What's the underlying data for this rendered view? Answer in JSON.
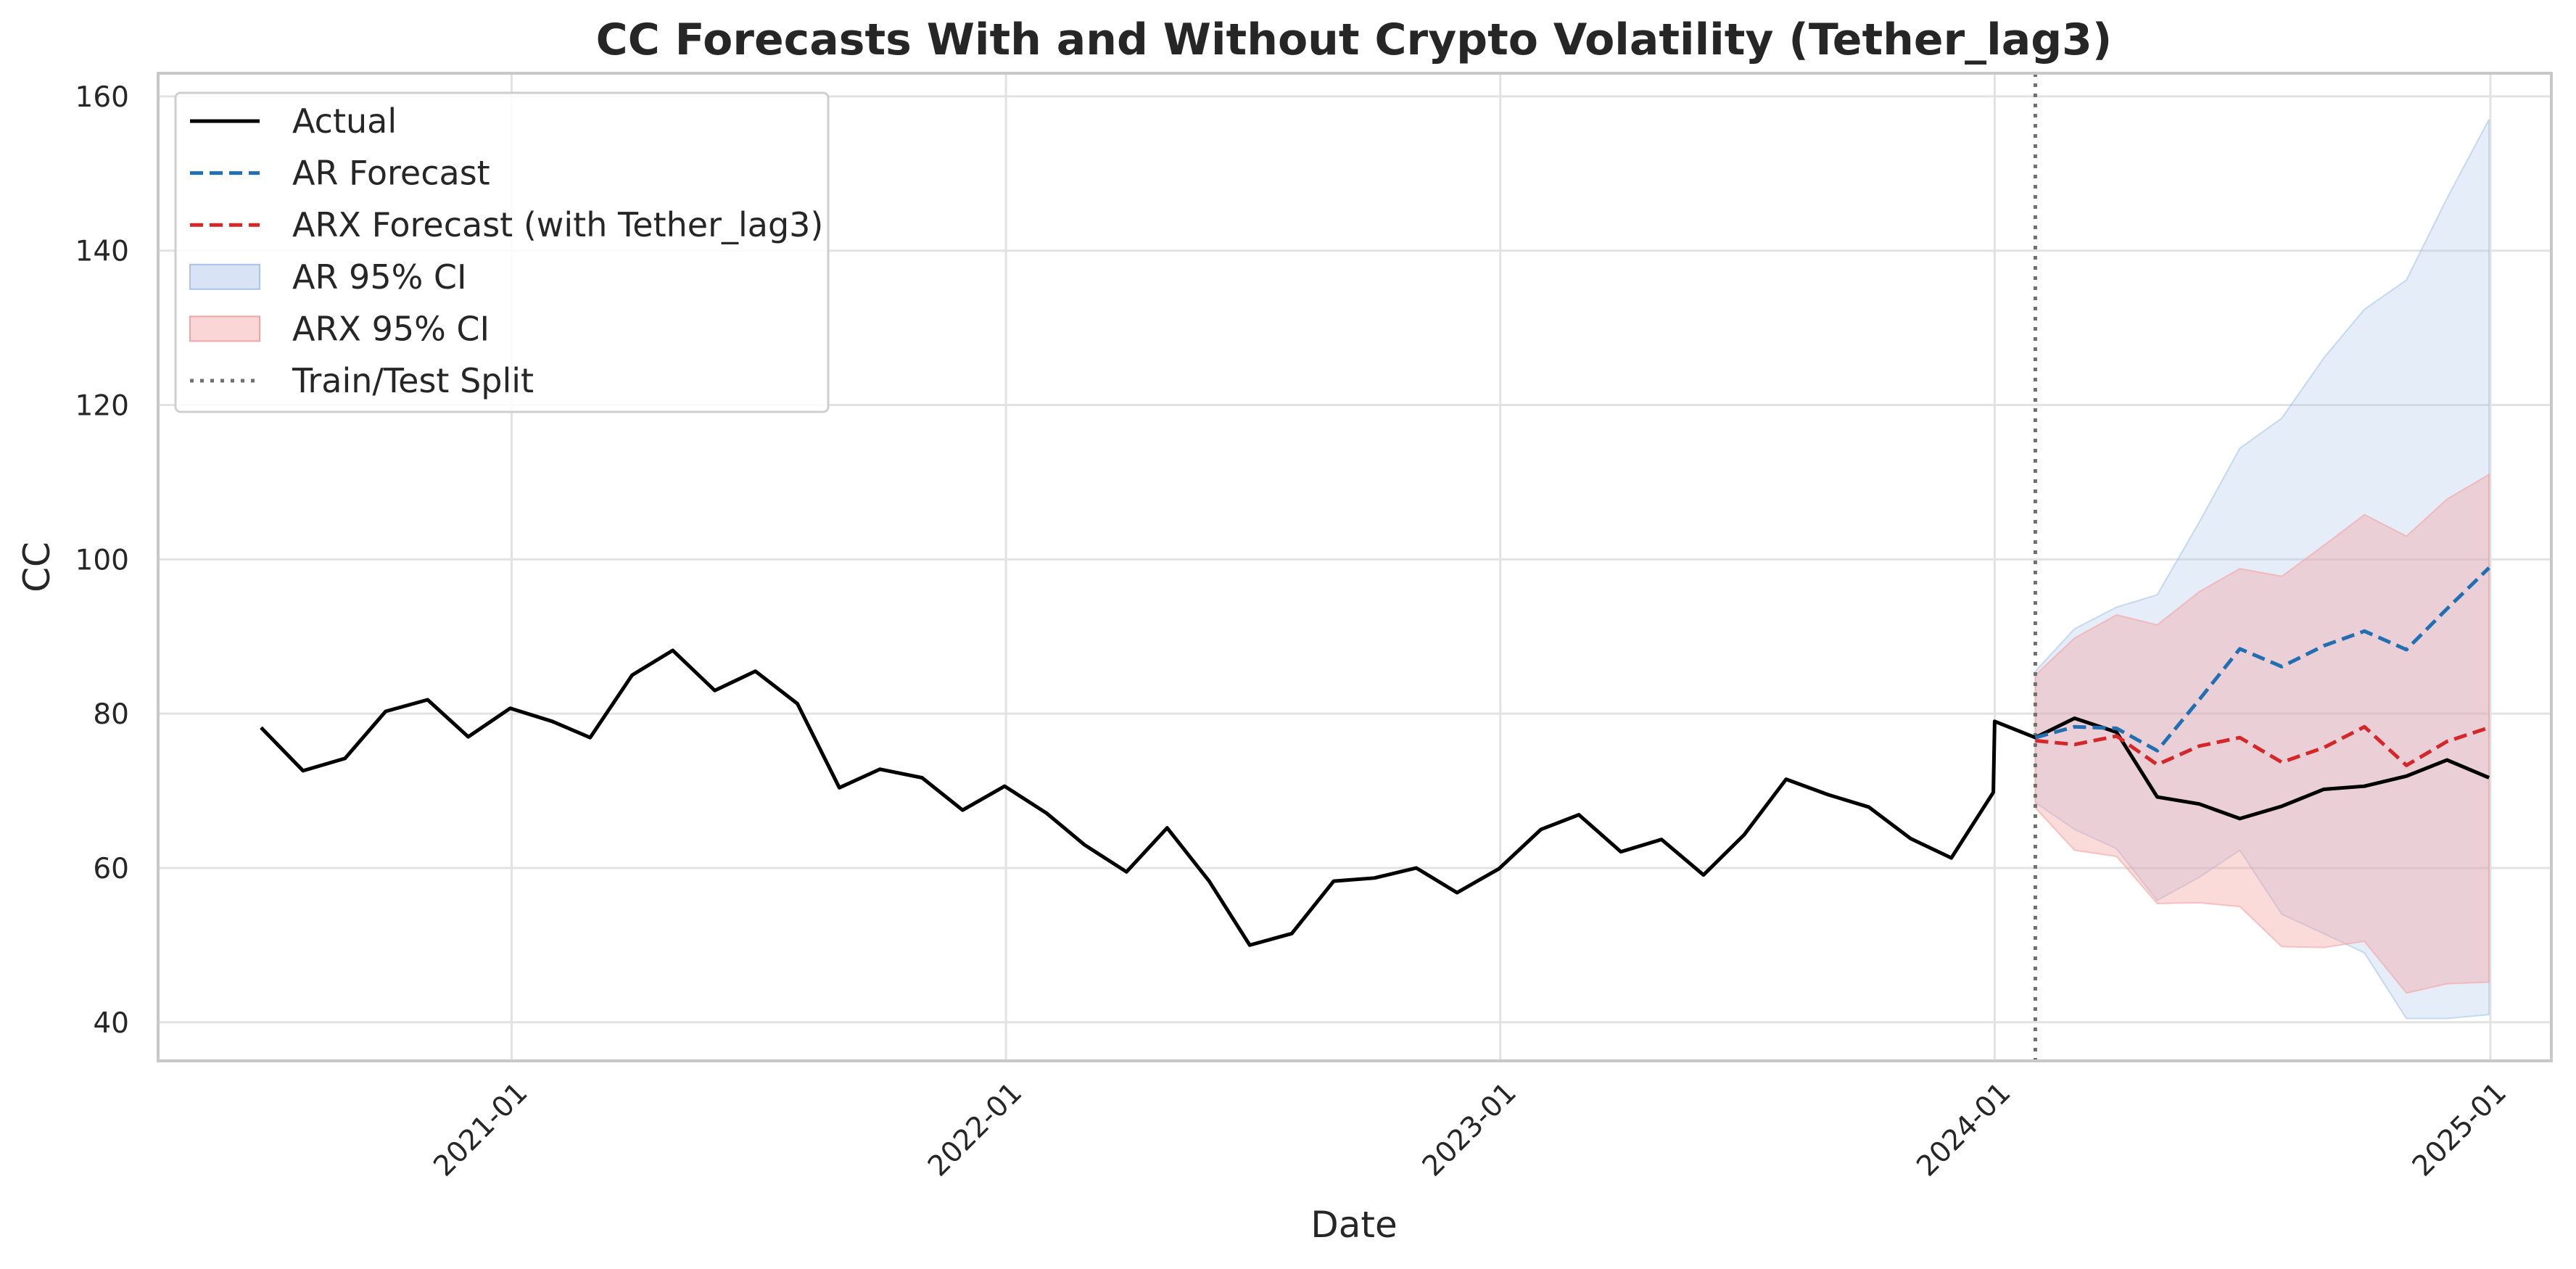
{
  "chart_data": {
    "type": "line",
    "title": "CC Forecasts With and Without Crypto Volatility (Tether_lag3)",
    "xlabel": "Date",
    "ylabel": "CC",
    "x_axis_type": "date",
    "x_range": [
      "2020-04-15",
      "2025-02-15"
    ],
    "ylim": [
      35,
      163
    ],
    "x_ticks": [
      "2021-01",
      "2022-01",
      "2023-01",
      "2024-01",
      "2025-01"
    ],
    "y_ticks": [
      40,
      60,
      80,
      100,
      120,
      140,
      160
    ],
    "grid": true,
    "legend_position": "upper-left",
    "train_test_split": "2024-01-31",
    "series": [
      {
        "name": "Actual",
        "color": "#000000",
        "style": "solid",
        "points": [
          [
            "2020-06-30",
            78.2
          ],
          [
            "2020-07-31",
            72.6
          ],
          [
            "2020-08-31",
            74.2
          ],
          [
            "2020-09-30",
            80.3
          ],
          [
            "2020-10-31",
            81.8
          ],
          [
            "2020-11-30",
            77.0
          ],
          [
            "2020-12-31",
            80.7
          ],
          [
            "2021-01-31",
            79.0
          ],
          [
            "2021-02-28",
            76.9
          ],
          [
            "2021-03-31",
            85.0
          ],
          [
            "2021-04-30",
            88.2
          ],
          [
            "2021-05-31",
            83.0
          ],
          [
            "2021-06-30",
            85.5
          ],
          [
            "2021-07-31",
            81.3
          ],
          [
            "2021-08-31",
            70.4
          ],
          [
            "2021-09-30",
            72.8
          ],
          [
            "2021-10-31",
            71.7
          ],
          [
            "2021-11-30",
            67.5
          ],
          [
            "2021-12-31",
            70.6
          ],
          [
            "2022-01-31",
            67.1
          ],
          [
            "2022-02-28",
            63.0
          ],
          [
            "2022-03-31",
            59.5
          ],
          [
            "2022-04-30",
            65.2
          ],
          [
            "2022-05-31",
            58.3
          ],
          [
            "2022-06-30",
            50.0
          ],
          [
            "2022-07-31",
            51.5
          ],
          [
            "2022-08-31",
            58.3
          ],
          [
            "2022-09-30",
            58.7
          ],
          [
            "2022-10-31",
            60.0
          ],
          [
            "2022-11-30",
            56.8
          ],
          [
            "2022-12-31",
            59.9
          ],
          [
            "2023-01-31",
            65.0
          ],
          [
            "2023-02-28",
            66.9
          ],
          [
            "2023-03-31",
            62.1
          ],
          [
            "2023-04-30",
            63.7
          ],
          [
            "2023-05-31",
            59.1
          ],
          [
            "2023-06-30",
            64.3
          ],
          [
            "2023-07-31",
            71.5
          ],
          [
            "2023-08-31",
            69.5
          ],
          [
            "2023-09-30",
            67.9
          ],
          [
            "2023-10-31",
            63.8
          ],
          [
            "2023-11-30",
            61.3
          ],
          [
            "2023-12-31",
            69.8
          ],
          [
            "2024-01-01",
            79.0
          ],
          [
            "2024-01-31",
            76.9
          ],
          [
            "2024-02-29",
            79.4
          ],
          [
            "2024-03-31",
            77.6
          ],
          [
            "2024-04-30",
            69.2
          ],
          [
            "2024-05-31",
            68.3
          ],
          [
            "2024-06-30",
            66.4
          ],
          [
            "2024-07-31",
            68.0
          ],
          [
            "2024-08-31",
            70.2
          ],
          [
            "2024-09-30",
            70.6
          ],
          [
            "2024-10-31",
            71.9
          ],
          [
            "2024-11-30",
            74.0
          ],
          [
            "2024-12-31",
            71.7
          ]
        ]
      },
      {
        "name": "AR Forecast",
        "color": "#1f6fb2",
        "style": "dashed",
        "points": [
          [
            "2024-01-31",
            76.9
          ],
          [
            "2024-02-29",
            78.3
          ],
          [
            "2024-03-31",
            78.1
          ],
          [
            "2024-04-30",
            75.2
          ],
          [
            "2024-05-31",
            81.8
          ],
          [
            "2024-06-30",
            88.4
          ],
          [
            "2024-07-31",
            86.1
          ],
          [
            "2024-08-31",
            88.8
          ],
          [
            "2024-09-30",
            90.7
          ],
          [
            "2024-10-31",
            88.3
          ],
          [
            "2024-11-30",
            93.6
          ],
          [
            "2024-12-31",
            98.9
          ]
        ]
      },
      {
        "name": "ARX Forecast (with Tether_lag3)",
        "color": "#d62728",
        "style": "dashed",
        "points": [
          [
            "2024-01-31",
            76.5
          ],
          [
            "2024-02-29",
            76.0
          ],
          [
            "2024-03-31",
            77.1
          ],
          [
            "2024-04-30",
            73.4
          ],
          [
            "2024-05-31",
            75.8
          ],
          [
            "2024-06-30",
            76.9
          ],
          [
            "2024-07-31",
            73.7
          ],
          [
            "2024-08-31",
            75.6
          ],
          [
            "2024-09-30",
            78.3
          ],
          [
            "2024-10-31",
            73.3
          ],
          [
            "2024-11-30",
            76.4
          ],
          [
            "2024-12-31",
            78.2
          ]
        ]
      }
    ],
    "bands": [
      {
        "name": "AR 95% CI",
        "color": "#a9c4e8",
        "opacity": 0.3,
        "points": [
          [
            "2024-01-31",
            85.5,
            68.5
          ],
          [
            "2024-02-29",
            91.0,
            65.0
          ],
          [
            "2024-03-31",
            93.8,
            62.5
          ],
          [
            "2024-04-30",
            95.4,
            55.8
          ],
          [
            "2024-05-31",
            104.8,
            58.8
          ],
          [
            "2024-06-30",
            114.4,
            62.3
          ],
          [
            "2024-07-31",
            118.3,
            54.0
          ],
          [
            "2024-08-31",
            126.1,
            51.5
          ],
          [
            "2024-09-30",
            132.4,
            49.0
          ],
          [
            "2024-10-31",
            136.2,
            40.5
          ],
          [
            "2024-11-30",
            146.8,
            40.5
          ],
          [
            "2024-12-31",
            157.0,
            41.0
          ]
        ]
      },
      {
        "name": "ARX 95% CI",
        "color": "#f4a3a3",
        "opacity": 0.4,
        "points": [
          [
            "2024-01-31",
            85.0,
            67.8
          ],
          [
            "2024-02-29",
            89.8,
            62.3
          ],
          [
            "2024-03-31",
            92.8,
            61.5
          ],
          [
            "2024-04-30",
            91.5,
            55.4
          ],
          [
            "2024-05-31",
            95.8,
            55.5
          ],
          [
            "2024-06-30",
            98.8,
            55.0
          ],
          [
            "2024-07-31",
            97.8,
            49.8
          ],
          [
            "2024-08-31",
            101.8,
            49.7
          ],
          [
            "2024-09-30",
            105.8,
            50.5
          ],
          [
            "2024-10-31",
            103.0,
            43.8
          ],
          [
            "2024-11-30",
            107.8,
            45.0
          ],
          [
            "2024-12-31",
            111.0,
            45.2
          ]
        ]
      }
    ],
    "legend": [
      {
        "label": "Actual",
        "kind": "line",
        "color": "#000000",
        "dash": "solid"
      },
      {
        "label": "AR Forecast",
        "kind": "line",
        "color": "#1f6fb2",
        "dash": "dashed"
      },
      {
        "label": "ARX Forecast (with Tether_lag3)",
        "kind": "line",
        "color": "#d62728",
        "dash": "dashed"
      },
      {
        "label": "AR 95% CI",
        "kind": "patch",
        "color": "#a9c4e8"
      },
      {
        "label": "ARX 95% CI",
        "kind": "patch",
        "color": "#f4a3a3"
      },
      {
        "label": "Train/Test Split",
        "kind": "line",
        "color": "#707070",
        "dash": "dotted"
      }
    ]
  }
}
